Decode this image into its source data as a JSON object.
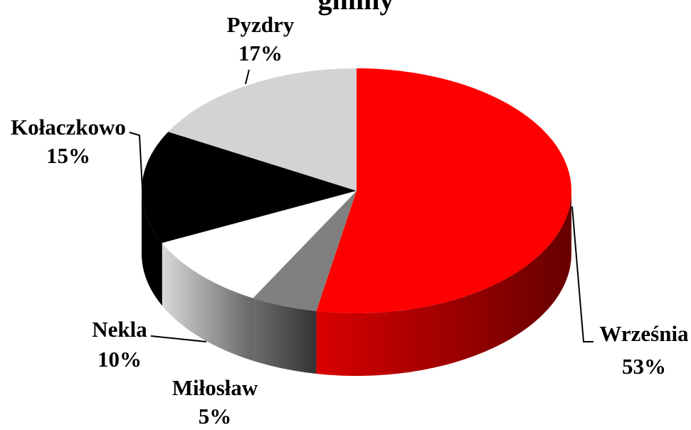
{
  "chart_data": {
    "type": "pie",
    "title": "gminy",
    "categories": [
      "Września",
      "Miłosław",
      "Nekla",
      "Kołaczkowo",
      "Pyzdry"
    ],
    "values": [
      53,
      5,
      10,
      15,
      17
    ],
    "value_labels": [
      "53%",
      "5%",
      "10%",
      "15%",
      "17%"
    ],
    "colors": [
      "#ff0000",
      "#808080",
      "#ffffff",
      "#000000",
      "#d3d3d3"
    ]
  }
}
